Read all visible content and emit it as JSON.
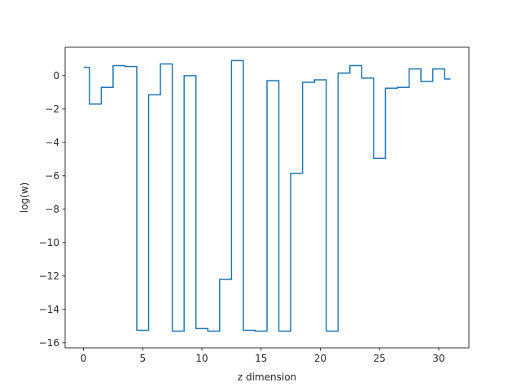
{
  "chart_data": {
    "type": "line",
    "drawstyle": "steps-mid",
    "title": "",
    "xlabel": "z dimension",
    "ylabel": "log(w)",
    "xlim": [
      -1.55,
      32.55
    ],
    "ylim": [
      -16.3,
      1.7
    ],
    "xticks": [
      0,
      5,
      10,
      15,
      20,
      25,
      30
    ],
    "yticks": [
      0,
      -2,
      -4,
      -6,
      -8,
      -10,
      -12,
      -14,
      -16
    ],
    "grid": false,
    "legend": "none",
    "series": [
      {
        "color": "#1f77b4",
        "x": [
          0,
          1,
          2,
          3,
          4,
          5,
          6,
          7,
          8,
          9,
          10,
          11,
          12,
          13,
          14,
          15,
          16,
          17,
          18,
          19,
          20,
          21,
          22,
          23,
          24,
          25,
          26,
          27,
          28,
          29,
          30,
          31
        ],
        "y": [
          0.5,
          -1.7,
          -0.7,
          0.6,
          0.55,
          -15.25,
          -1.15,
          0.7,
          -15.3,
          0.0,
          -15.15,
          -15.3,
          -12.2,
          0.9,
          -15.25,
          -15.3,
          -0.3,
          -15.3,
          -5.85,
          -0.4,
          -0.25,
          -15.3,
          0.15,
          0.6,
          -0.15,
          -4.95,
          -0.75,
          -0.7,
          0.4,
          -0.35,
          0.4,
          -0.2
        ]
      }
    ]
  }
}
